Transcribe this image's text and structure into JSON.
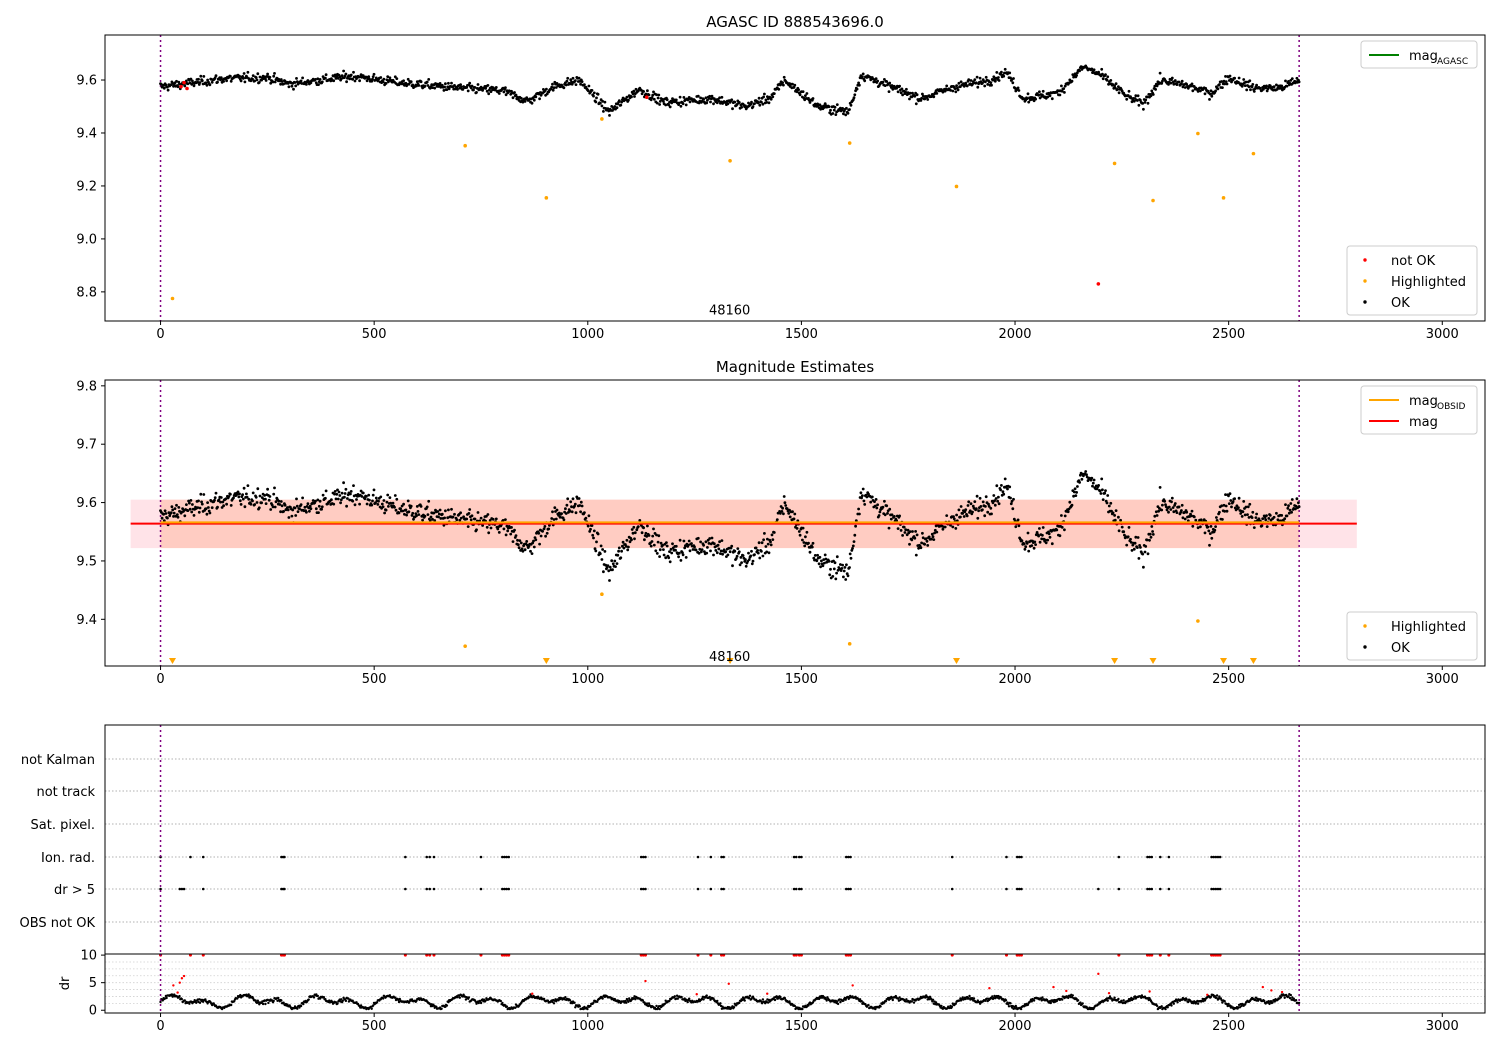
{
  "chart_data": [
    {
      "type": "scatter",
      "title": "AGASC ID 888543696.0",
      "xlim": [
        -130,
        3100
      ],
      "ylim": [
        8.69,
        9.77
      ],
      "xticks": [
        0,
        500,
        1000,
        1500,
        2000,
        2500,
        3000
      ],
      "yticks": [
        8.8,
        9.0,
        9.2,
        9.4,
        9.6
      ],
      "ytick_labels": [
        "8.8",
        "9.0",
        "9.2",
        "9.4",
        "9.6"
      ],
      "vlines": [
        0,
        2665
      ],
      "vline_color": "#800080",
      "obsid_label": {
        "text": "48160",
        "x": 1332,
        "y": 8.73
      },
      "legend_upper": {
        "entries": [
          {
            "label": "mag",
            "sub": "AGASC",
            "color": "#008000"
          }
        ],
        "placement": "upper right"
      },
      "legend_lower": {
        "entries": [
          {
            "label": "not OK",
            "color": "#ff0000"
          },
          {
            "label": "Highlighted",
            "color": "#ffa500"
          },
          {
            "label": "OK",
            "color": "#000000"
          }
        ],
        "placement": "lower right"
      },
      "series": [
        {
          "name": "Highlighted",
          "color": "#ffa500",
          "points": [
            [
              28,
              8.775
            ],
            [
              713,
              9.352
            ],
            [
              903,
              9.155
            ],
            [
              1033,
              9.453
            ],
            [
              1333,
              9.295
            ],
            [
              1613,
              9.362
            ],
            [
              1863,
              9.198
            ],
            [
              2233,
              9.285
            ],
            [
              2323,
              9.145
            ],
            [
              2428,
              9.398
            ],
            [
              2488,
              9.155
            ],
            [
              2558,
              9.322
            ]
          ]
        },
        {
          "name": "not OK",
          "color": "#ff0000",
          "points": [
            [
              48,
              9.575
            ],
            [
              55,
              9.59
            ],
            [
              62,
              9.568
            ],
            [
              1138,
              9.535
            ],
            [
              2195,
              8.83
            ]
          ]
        },
        {
          "name": "OK",
          "color": "#000000",
          "baseline": [
            [
              0,
              9.575
            ],
            [
              150,
              9.605
            ],
            [
              250,
              9.61
            ],
            [
              300,
              9.585
            ],
            [
              450,
              9.615
            ],
            [
              560,
              9.59
            ],
            [
              700,
              9.57
            ],
            [
              800,
              9.56
            ],
            [
              860,
              9.52
            ],
            [
              920,
              9.575
            ],
            [
              980,
              9.6
            ],
            [
              1050,
              9.48
            ],
            [
              1120,
              9.565
            ],
            [
              1180,
              9.515
            ],
            [
              1290,
              9.53
            ],
            [
              1370,
              9.5
            ],
            [
              1430,
              9.535
            ],
            [
              1460,
              9.6
            ],
            [
              1540,
              9.5
            ],
            [
              1610,
              9.48
            ],
            [
              1640,
              9.62
            ],
            [
              1700,
              9.58
            ],
            [
              1780,
              9.53
            ],
            [
              1860,
              9.575
            ],
            [
              1940,
              9.6
            ],
            [
              1980,
              9.63
            ],
            [
              2020,
              9.53
            ],
            [
              2100,
              9.55
            ],
            [
              2160,
              9.65
            ],
            [
              2200,
              9.62
            ],
            [
              2260,
              9.54
            ],
            [
              2300,
              9.51
            ],
            [
              2340,
              9.6
            ],
            [
              2400,
              9.58
            ],
            [
              2460,
              9.55
            ],
            [
              2500,
              9.61
            ],
            [
              2560,
              9.57
            ],
            [
              2620,
              9.57
            ],
            [
              2665,
              9.6
            ]
          ],
          "scatter": 0.012,
          "x_range": [
            0,
            2665
          ],
          "count": 1500
        }
      ]
    },
    {
      "type": "scatter",
      "title": "Magnitude Estimates",
      "xlim": [
        -130,
        3100
      ],
      "ylim": [
        9.32,
        9.81
      ],
      "xticks": [
        0,
        500,
        1000,
        1500,
        2000,
        2500,
        3000
      ],
      "yticks": [
        9.4,
        9.5,
        9.6,
        9.7,
        9.8
      ],
      "ytick_labels": [
        "9.4",
        "9.5",
        "9.6",
        "9.7",
        "9.8"
      ],
      "vlines": [
        0,
        2665
      ],
      "vline_color": "#800080",
      "obsid_label": {
        "text": "48160",
        "x": 1332,
        "y": 9.335
      },
      "bands": [
        {
          "x": [
            -70,
            2800
          ],
          "y": [
            9.522,
            9.605
          ],
          "color": "#ffc0cb",
          "opacity": 0.45
        },
        {
          "x": [
            0,
            2665
          ],
          "y": [
            9.522,
            9.605
          ],
          "color": "#ffa07a",
          "opacity": 0.35
        }
      ],
      "lines": [
        {
          "name": "mag",
          "color": "#ff0000",
          "y": 9.564,
          "x": [
            -70,
            2800
          ]
        },
        {
          "name": "mag_OBSID",
          "color": "#ffa500",
          "y": 9.566,
          "x": [
            0,
            2665
          ]
        }
      ],
      "legend_upper": {
        "entries": [
          {
            "label": "mag",
            "sub": "OBSID",
            "color": "#ffa500"
          },
          {
            "label": "mag",
            "color": "#ff0000"
          }
        ],
        "placement": "upper right"
      },
      "legend_lower": {
        "entries": [
          {
            "label": "Highlighted",
            "color": "#ffa500"
          },
          {
            "label": "OK",
            "color": "#000000"
          }
        ],
        "placement": "lower right"
      },
      "series": [
        {
          "name": "Highlighted",
          "color": "#ffa500",
          "points": [
            [
              713,
              9.354
            ],
            [
              1033,
              9.443
            ],
            [
              1613,
              9.358
            ],
            [
              2428,
              9.397
            ]
          ],
          "lower_limits": [
            28,
            903,
            1333,
            1863,
            2233,
            2323,
            2488,
            2558
          ]
        },
        {
          "name": "OK",
          "color": "#000000",
          "baseline": [
            [
              0,
              9.575
            ],
            [
              150,
              9.605
            ],
            [
              250,
              9.61
            ],
            [
              300,
              9.585
            ],
            [
              450,
              9.615
            ],
            [
              560,
              9.59
            ],
            [
              700,
              9.57
            ],
            [
              800,
              9.56
            ],
            [
              860,
              9.52
            ],
            [
              920,
              9.575
            ],
            [
              980,
              9.6
            ],
            [
              1050,
              9.48
            ],
            [
              1120,
              9.565
            ],
            [
              1180,
              9.515
            ],
            [
              1290,
              9.53
            ],
            [
              1370,
              9.5
            ],
            [
              1430,
              9.535
            ],
            [
              1460,
              9.6
            ],
            [
              1540,
              9.5
            ],
            [
              1610,
              9.48
            ],
            [
              1640,
              9.62
            ],
            [
              1700,
              9.58
            ],
            [
              1780,
              9.53
            ],
            [
              1860,
              9.575
            ],
            [
              1940,
              9.6
            ],
            [
              1980,
              9.63
            ],
            [
              2020,
              9.53
            ],
            [
              2100,
              9.55
            ],
            [
              2160,
              9.65
            ],
            [
              2200,
              9.62
            ],
            [
              2260,
              9.54
            ],
            [
              2300,
              9.51
            ],
            [
              2340,
              9.6
            ],
            [
              2400,
              9.58
            ],
            [
              2460,
              9.55
            ],
            [
              2500,
              9.61
            ],
            [
              2560,
              9.57
            ],
            [
              2620,
              9.57
            ],
            [
              2665,
              9.6
            ]
          ],
          "scatter": 0.012,
          "x_range": [
            0,
            2665
          ],
          "count": 1500
        }
      ]
    },
    {
      "type": "scatter",
      "title": "",
      "xlim": [
        -130,
        3100
      ],
      "xticks": [
        0,
        500,
        1000,
        1500,
        2000,
        2500,
        3000
      ],
      "vlines": [
        0,
        2665
      ],
      "vline_color": "#800080",
      "flag_rows": [
        "not Kalman",
        "not track",
        "Sat. pixel.",
        "Ion. rad.",
        "dr > 5",
        "OBS not OK"
      ],
      "flags": {
        "Ion. rad.": [
          0,
          70,
          100,
          283,
          287,
          290,
          573,
          623,
          630,
          640,
          750,
          800,
          805,
          810,
          815,
          1125,
          1130,
          1135,
          1258,
          1288,
          1313,
          1318,
          1483,
          1488,
          1495,
          1500,
          1605,
          1610,
          1615,
          1853,
          1980,
          2005,
          2010,
          2015,
          2243,
          2310,
          2315,
          2320,
          2340,
          2360,
          2460,
          2465,
          2470,
          2475,
          2480
        ],
        "dr > 5": [
          0,
          45,
          50,
          55,
          100,
          283,
          287,
          290,
          573,
          623,
          630,
          640,
          750,
          800,
          805,
          810,
          815,
          1125,
          1130,
          1135,
          1258,
          1288,
          1313,
          1318,
          1483,
          1488,
          1495,
          1500,
          1605,
          1610,
          1615,
          1853,
          1980,
          2005,
          2010,
          2015,
          2195,
          2243,
          2310,
          2315,
          2320,
          2340,
          2360,
          2460,
          2465,
          2470,
          2475,
          2480
        ]
      },
      "dr_panel": {
        "ylabel": "dr",
        "ylim": [
          -0.5,
          10.2
        ],
        "yticks": [
          0,
          5,
          10
        ],
        "ytick_labels": [
          "0",
          "5",
          "10"
        ],
        "clip_value": 10,
        "ok_color": "#000000",
        "bad_color": "#ff0000",
        "red_top_x": [
          0,
          70,
          100,
          283,
          287,
          290,
          573,
          623,
          630,
          640,
          750,
          800,
          805,
          810,
          815,
          1125,
          1130,
          1135,
          1258,
          1288,
          1313,
          1318,
          1483,
          1488,
          1495,
          1500,
          1605,
          1610,
          1615,
          1853,
          1980,
          2005,
          2010,
          2015,
          2243,
          2310,
          2315,
          2320,
          2340,
          2360,
          2460,
          2465,
          2470,
          2475,
          2480
        ],
        "red_points": [
          [
            30,
            4.5
          ],
          [
            40,
            3.2
          ],
          [
            45,
            5.0
          ],
          [
            50,
            5.8
          ],
          [
            55,
            6.2
          ],
          [
            870,
            3.0
          ],
          [
            1135,
            5.3
          ],
          [
            1255,
            2.9
          ],
          [
            1330,
            4.8
          ],
          [
            1420,
            3.0
          ],
          [
            1620,
            4.5
          ],
          [
            1940,
            4.0
          ],
          [
            2090,
            4.2
          ],
          [
            2120,
            3.5
          ],
          [
            2195,
            6.6
          ],
          [
            2220,
            3.1
          ],
          [
            2315,
            3.4
          ],
          [
            2450,
            2.8
          ],
          [
            2580,
            4.2
          ],
          [
            2600,
            3.6
          ],
          [
            2625,
            3.3
          ]
        ],
        "ok_range": [
          0.3,
          2.9
        ],
        "count": 1500
      }
    }
  ]
}
